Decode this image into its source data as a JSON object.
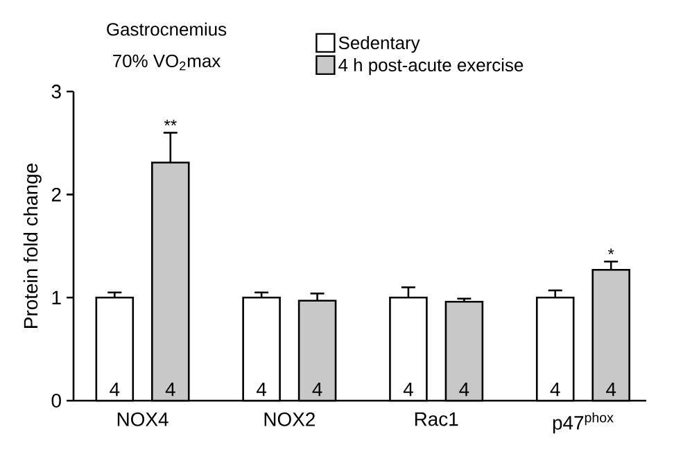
{
  "chart_data": {
    "type": "bar",
    "title": "Gastrocnemius",
    "subtitle": "70% VO$_{2}$max",
    "ylabel": "Protein fold change",
    "categories": [
      "NOX4",
      "NOX2",
      "Rac1",
      "p47$^{phox}$"
    ],
    "series": [
      {
        "name": "Sedentary",
        "color": "#ffffff",
        "values": [
          1.0,
          1.0,
          1.0,
          1.0
        ],
        "errors": [
          0.05,
          0.05,
          0.1,
          0.07
        ]
      },
      {
        "name": "4 h post-acute exercise",
        "color": "#c8c8c8",
        "values": [
          2.31,
          0.97,
          0.96,
          1.27
        ],
        "errors": [
          0.29,
          0.07,
          0.03,
          0.08
        ]
      }
    ],
    "ylim": [
      0,
      3
    ],
    "yticks": [
      0,
      1,
      2,
      3
    ],
    "legend": "top",
    "annotations": [
      "4",
      "4",
      "4",
      "4",
      "4",
      "4",
      "4",
      "4",
      "**",
      "*"
    ]
  }
}
